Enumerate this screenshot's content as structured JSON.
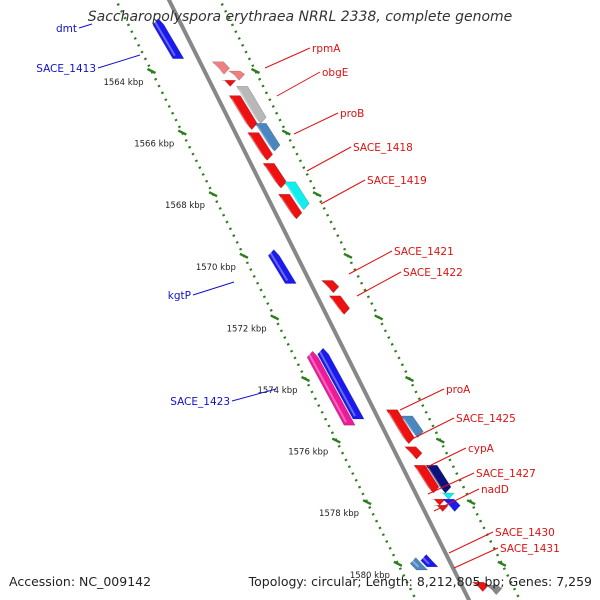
{
  "title": "Saccharopolyspora erythraea NRRL 2338, complete genome",
  "footer": {
    "accession": "Accession: NC_009142",
    "summary": "Topology: circular; Length: 8,212,805 bp; Genes: 7,259"
  },
  "colors": {
    "backbone": "#888888",
    "tick": "#2e7d1e",
    "forward_label": "#1111cc",
    "reverse_label": "#dd1111"
  },
  "ticks": [
    {
      "kbp": 1564,
      "label": "1564 kbp"
    },
    {
      "kbp": 1566,
      "label": "1566 kbp"
    },
    {
      "kbp": 1568,
      "label": "1568 kbp"
    },
    {
      "kbp": 1570,
      "label": "1570 kbp"
    },
    {
      "kbp": 1572,
      "label": "1572 kbp"
    },
    {
      "kbp": 1574,
      "label": "1574 kbp"
    },
    {
      "kbp": 1576,
      "label": "1576 kbp"
    },
    {
      "kbp": 1578,
      "label": "1578 kbp"
    },
    {
      "kbp": 1580,
      "label": "1580 kbp"
    }
  ],
  "forward_labels": [
    {
      "text": "dmt"
    },
    {
      "text": "SACE_1413"
    },
    {
      "text": "kgtP"
    },
    {
      "text": "SACE_1423"
    }
  ],
  "reverse_labels": [
    {
      "text": "rpmA"
    },
    {
      "text": "obgE"
    },
    {
      "text": "proB"
    },
    {
      "text": "SACE_1418"
    },
    {
      "text": "SACE_1419"
    },
    {
      "text": "SACE_1421"
    },
    {
      "text": "SACE_1422"
    },
    {
      "text": "proA"
    },
    {
      "text": "SACE_1425"
    },
    {
      "text": "cypA"
    },
    {
      "text": "SACE_1427"
    },
    {
      "text": "nadD"
    },
    {
      "text": "SACE_1430"
    },
    {
      "text": "SACE_1431"
    }
  ],
  "genes": [
    {
      "name": "dmt",
      "strand": "forward",
      "color": "#1a1aee",
      "start_kbp": 1562.3,
      "end_kbp": 1563.6
    },
    {
      "name": "kgtP",
      "strand": "forward",
      "color": "#1a1aee",
      "start_kbp": 1569.8,
      "end_kbp": 1570.9
    },
    {
      "name": "SACE_1423",
      "strand": "forward",
      "color": "#ee1a99",
      "start_kbp": 1573.1,
      "end_kbp": 1575.5
    },
    {
      "name": "forward-1423b",
      "strand": "forward",
      "color": "#1a1aee",
      "start_kbp": 1573.0,
      "end_kbp": 1575.3
    },
    {
      "name": "forward-1580a",
      "strand": "forward",
      "color": "#4a86c0",
      "start_kbp": 1579.8,
      "end_kbp": 1580.2
    },
    {
      "name": "forward-1580b",
      "strand": "forward",
      "color": "#1a1aee",
      "start_kbp": 1579.7,
      "end_kbp": 1580.1
    },
    {
      "name": "rpmA",
      "strand": "reverse",
      "color": "#f08080",
      "start_kbp": 1563.7,
      "end_kbp": 1564.1
    },
    {
      "name": "rpmA-b",
      "strand": "reverse",
      "color": "#f08080",
      "start_kbp": 1564.0,
      "end_kbp": 1564.3
    },
    {
      "name": "small-red-1",
      "strand": "reverse",
      "color": "#ee1111",
      "start_kbp": 1564.3,
      "end_kbp": 1564.5
    },
    {
      "name": "obgE",
      "strand": "reverse",
      "color": "#b8b8b8",
      "start_kbp": 1564.5,
      "end_kbp": 1565.7
    },
    {
      "name": "proB-red",
      "strand": "reverse",
      "color": "#ee1111",
      "start_kbp": 1564.8,
      "end_kbp": 1565.9
    },
    {
      "name": "proB",
      "strand": "reverse",
      "color": "#4a86c0",
      "start_kbp": 1565.7,
      "end_kbp": 1566.6
    },
    {
      "name": "SACE_1418",
      "strand": "reverse",
      "color": "#ee1111",
      "start_kbp": 1566.0,
      "end_kbp": 1566.9
    },
    {
      "name": "SACE_1419-red",
      "strand": "reverse",
      "color": "#ee1111",
      "start_kbp": 1567.0,
      "end_kbp": 1567.8
    },
    {
      "name": "SACE_1419",
      "strand": "reverse",
      "color": "#11eeee",
      "start_kbp": 1567.6,
      "end_kbp": 1568.5
    },
    {
      "name": "SACE_1419-red-b",
      "strand": "reverse",
      "color": "#ee1111",
      "start_kbp": 1568.0,
      "end_kbp": 1568.8
    },
    {
      "name": "SACE_1421",
      "strand": "reverse",
      "color": "#ee1111",
      "start_kbp": 1570.8,
      "end_kbp": 1571.2
    },
    {
      "name": "SACE_1422",
      "strand": "reverse",
      "color": "#ee1111",
      "start_kbp": 1571.3,
      "end_kbp": 1571.9
    },
    {
      "name": "proA-red",
      "strand": "reverse",
      "color": "#ee1111",
      "start_kbp": 1575.0,
      "end_kbp": 1576.1
    },
    {
      "name": "proA",
      "strand": "reverse",
      "color": "#4a86c0",
      "start_kbp": 1575.2,
      "end_kbp": 1575.9
    },
    {
      "name": "SACE_1425",
      "strand": "reverse",
      "color": "#ee1111",
      "start_kbp": 1576.2,
      "end_kbp": 1576.6
    },
    {
      "name": "cypA",
      "strand": "reverse",
      "color": "#10107a",
      "start_kbp": 1576.8,
      "end_kbp": 1577.7
    },
    {
      "name": "cypA-red",
      "strand": "reverse",
      "color": "#ee1111",
      "start_kbp": 1576.8,
      "end_kbp": 1577.7
    },
    {
      "name": "SACE_1427",
      "strand": "reverse",
      "color": "#11eeee",
      "start_kbp": 1577.7,
      "end_kbp": 1577.9
    },
    {
      "name": "small-red-2",
      "strand": "reverse",
      "color": "#ee1111",
      "start_kbp": 1577.9,
      "end_kbp": 1578.1
    },
    {
      "name": "nadD",
      "strand": "reverse",
      "color": "#1a1aee",
      "start_kbp": 1577.9,
      "end_kbp": 1578.3
    },
    {
      "name": "small-red-3",
      "strand": "reverse",
      "color": "#ee1111",
      "start_kbp": 1578.1,
      "end_kbp": 1578.3
    },
    {
      "name": "SACE_1430",
      "strand": "reverse",
      "color": "#ee1111",
      "start_kbp": 1580.6,
      "end_kbp": 1580.9
    },
    {
      "name": "SACE_1431",
      "strand": "reverse",
      "color": "#888888",
      "start_kbp": 1580.7,
      "end_kbp": 1581.0
    }
  ]
}
